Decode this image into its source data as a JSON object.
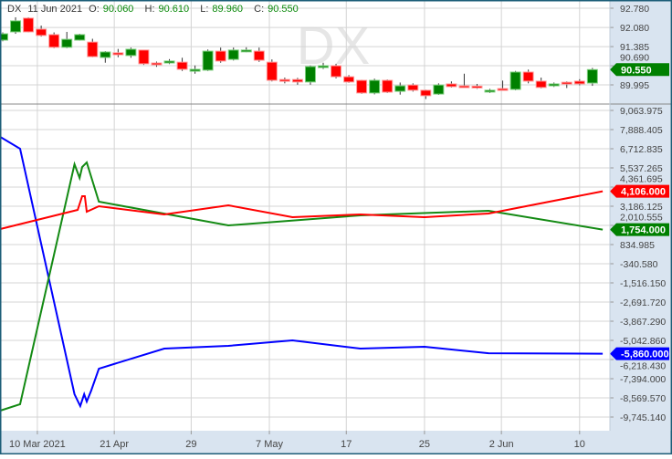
{
  "symbol": "DX",
  "watermark": "DX",
  "legend": {
    "date": "11 Jun 2021",
    "o_label": "O:",
    "o": "90.060",
    "h_label": "H:",
    "h": "90.610",
    "l_label": "L:",
    "l": "89.960",
    "c_label": "C:",
    "c": "90.550"
  },
  "colors": {
    "up": "#008000",
    "down": "#ff0000",
    "series_blue": "#0000ff",
    "series_green": "#138a13",
    "series_red": "#ff0000",
    "axis_bg": "#d9e4f0",
    "frame": "#1d5e78"
  },
  "price_axis": [
    "92.780",
    "92.080",
    "91.385",
    "90.690",
    "89.995"
  ],
  "price_badge": "90.550",
  "price_range": [
    89.995,
    92.78
  ],
  "indicator_axis": [
    "9,063.975",
    "7,888.405",
    "6,712.835",
    "5,537.265",
    "4,361.695",
    "3,186.125",
    "2,010.555",
    "834.985",
    "-340.580",
    "-1,516.150",
    "-2,691.720",
    "-3,867.290",
    "-5,042.860",
    "-6,218.430",
    "-7,394.000",
    "-8,569.570",
    "-9,745.140"
  ],
  "indicator_range": [
    -9745.14,
    9063.975
  ],
  "badges": [
    {
      "label": "4,106.000",
      "value": 4106,
      "color": "#ff0000"
    },
    {
      "label": "1,754.000",
      "value": 1754,
      "color": "#008000"
    },
    {
      "label": "-5,860.000",
      "value": -5860,
      "color": "#0000ff"
    }
  ],
  "time_axis": [
    {
      "label": "10 Mar 2021",
      "bar": 2.7
    },
    {
      "label": "21 Apr",
      "bar": 8.7
    },
    {
      "label": "29",
      "bar": 14.7
    },
    {
      "label": "7 May",
      "bar": 20.8
    },
    {
      "label": "17",
      "bar": 26.8
    },
    {
      "label": "25",
      "bar": 32.9
    },
    {
      "label": "2 Jun",
      "bar": 38.9
    },
    {
      "label": "10",
      "bar": 45.0
    }
  ],
  "chart_data": [
    {
      "type": "candlestick",
      "fields": [
        "open",
        "high",
        "low",
        "close"
      ],
      "last_date": "11 Jun 2021",
      "candles": [
        [
          91.62,
          91.9,
          91.58,
          91.85
        ],
        [
          91.92,
          92.45,
          91.85,
          92.32
        ],
        [
          92.42,
          92.45,
          91.9,
          91.92
        ],
        [
          92.02,
          92.15,
          91.75,
          91.79
        ],
        [
          91.82,
          91.9,
          91.33,
          91.36
        ],
        [
          91.36,
          91.92,
          91.33,
          91.65
        ],
        [
          91.62,
          91.85,
          91.6,
          91.82
        ],
        [
          91.55,
          91.67,
          91.0,
          91.02
        ],
        [
          90.99,
          91.22,
          90.8,
          91.19
        ],
        [
          91.16,
          91.3,
          91.0,
          91.09
        ],
        [
          91.06,
          91.35,
          90.98,
          91.29
        ],
        [
          91.26,
          91.27,
          90.72,
          90.76
        ],
        [
          90.79,
          90.84,
          90.65,
          90.73
        ],
        [
          90.79,
          90.93,
          90.75,
          90.86
        ],
        [
          90.82,
          90.98,
          90.5,
          90.56
        ],
        [
          90.49,
          90.7,
          90.4,
          90.56
        ],
        [
          90.53,
          91.28,
          90.5,
          91.22
        ],
        [
          91.22,
          91.35,
          90.8,
          90.86
        ],
        [
          90.92,
          91.35,
          90.88,
          91.26
        ],
        [
          91.22,
          91.36,
          91.18,
          91.26
        ],
        [
          91.22,
          91.35,
          90.83,
          90.89
        ],
        [
          90.82,
          90.92,
          90.12,
          90.16
        ],
        [
          90.19,
          90.26,
          90.05,
          90.13
        ],
        [
          90.19,
          90.25,
          90.0,
          90.1
        ],
        [
          90.1,
          90.7,
          90.0,
          90.66
        ],
        [
          90.66,
          90.8,
          90.57,
          90.69
        ],
        [
          90.69,
          90.76,
          90.23,
          90.29
        ],
        [
          90.29,
          90.35,
          90.07,
          90.1
        ],
        [
          90.16,
          90.18,
          89.67,
          89.7
        ],
        [
          89.7,
          90.22,
          89.65,
          90.16
        ],
        [
          90.16,
          90.19,
          89.7,
          89.73
        ],
        [
          89.76,
          90.08,
          89.64,
          89.96
        ],
        [
          89.99,
          90.05,
          89.75,
          89.8
        ],
        [
          89.8,
          89.82,
          89.48,
          89.6
        ],
        [
          89.66,
          90.05,
          89.63,
          89.99
        ],
        [
          90.03,
          90.12,
          89.9,
          89.93
        ],
        [
          89.96,
          90.4,
          89.9,
          89.93
        ],
        [
          89.95,
          90.03,
          89.85,
          89.92
        ],
        [
          89.78,
          89.85,
          89.7,
          89.8
        ],
        [
          89.86,
          90.15,
          89.82,
          89.83
        ],
        [
          89.83,
          90.5,
          89.8,
          90.46
        ],
        [
          90.46,
          90.55,
          90.05,
          90.13
        ],
        [
          90.13,
          90.26,
          89.87,
          89.9
        ],
        [
          89.96,
          90.08,
          89.92,
          90.03
        ],
        [
          90.09,
          90.12,
          89.88,
          90.06
        ],
        [
          90.13,
          90.2,
          89.98,
          90.03
        ],
        [
          90.06,
          90.61,
          89.96,
          90.55
        ]
      ]
    },
    {
      "type": "line",
      "x_unit": "bar index",
      "series": [
        {
          "color": "#0000ff",
          "points": [
            [
              -0.2,
              7440
            ],
            [
              1.35,
              6713
            ],
            [
              5.6,
              -8346
            ],
            [
              6.05,
              -9074
            ],
            [
              6.35,
              -8346
            ],
            [
              6.55,
              -8794
            ],
            [
              6.9,
              -8122
            ],
            [
              7.5,
              -6779
            ],
            [
              12.6,
              -5547
            ],
            [
              17.6,
              -5379
            ],
            [
              22.6,
              -5043
            ],
            [
              27.9,
              -5547
            ],
            [
              32.9,
              -5435
            ],
            [
              37.9,
              -5830
            ],
            [
              46.8,
              -5860
            ]
          ]
        },
        {
          "color": "#138a13",
          "points": [
            [
              -0.2,
              -9354
            ],
            [
              1.35,
              -8962
            ],
            [
              5.6,
              5761
            ],
            [
              6.0,
              4921
            ],
            [
              6.2,
              5593
            ],
            [
              6.55,
              5873
            ],
            [
              7.5,
              3466
            ],
            [
              17.6,
              2011
            ],
            [
              27.9,
              2627
            ],
            [
              37.9,
              2906
            ],
            [
              46.8,
              1754
            ]
          ]
        },
        {
          "color": "#ff0000",
          "points": [
            [
              -0.2,
              1787
            ],
            [
              5.85,
              2962
            ],
            [
              6.2,
              3802
            ],
            [
              6.4,
              3802
            ],
            [
              6.55,
              2850
            ],
            [
              7.5,
              3186
            ],
            [
              12.6,
              2682
            ],
            [
              17.6,
              3242
            ],
            [
              22.6,
              2514
            ],
            [
              27.9,
              2682
            ],
            [
              32.9,
              2514
            ],
            [
              37.9,
              2738
            ],
            [
              46.8,
              4106
            ]
          ]
        }
      ]
    }
  ]
}
